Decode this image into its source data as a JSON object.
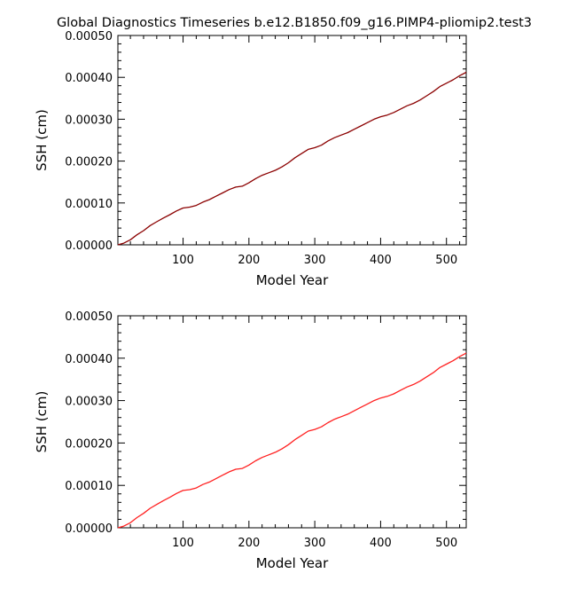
{
  "figure": {
    "title": "Global Diagnostics Timeseries b.e12.B1850.f09_g16.PIMP4-pliomip2.test3"
  },
  "chart_data": [
    {
      "type": "line",
      "title": "",
      "xlabel": "Model Year",
      "ylabel": "SSH (cm)",
      "xlim": [
        1,
        530
      ],
      "ylim": [
        0,
        0.0005
      ],
      "x_ticks": [
        100,
        200,
        300,
        400,
        500
      ],
      "x_tick_labels": [
        "100",
        "200",
        "300",
        "400",
        "500"
      ],
      "y_ticks": [
        0,
        0.0001,
        0.0002,
        0.0003,
        0.0004,
        0.0005
      ],
      "y_tick_labels": [
        "0.00000",
        "0.00010",
        "0.00020",
        "0.00030",
        "0.00040",
        "0.00050"
      ],
      "grid": false,
      "series": [
        {
          "color": "#8b0000",
          "x": [
            1,
            10,
            20,
            30,
            40,
            50,
            60,
            70,
            80,
            90,
            100,
            110,
            120,
            130,
            140,
            150,
            160,
            170,
            180,
            190,
            200,
            210,
            220,
            230,
            240,
            250,
            260,
            270,
            280,
            290,
            300,
            310,
            320,
            330,
            340,
            350,
            360,
            370,
            380,
            390,
            400,
            410,
            420,
            430,
            440,
            450,
            460,
            470,
            480,
            490,
            500,
            510,
            520,
            530
          ],
          "y": [
            0.0,
            4e-06,
            1.2e-05,
            2.4e-05,
            3.4e-05,
            4.6e-05,
            5.5e-05,
            6.4e-05,
            7.2e-05,
            8.1e-05,
            8.8e-05,
            9e-05,
            9.4e-05,
            0.000102,
            0.000108,
            0.000116,
            0.000124,
            0.000132,
            0.000138,
            0.00014,
            0.000148,
            0.000158,
            0.000166,
            0.000172,
            0.000178,
            0.000186,
            0.000196,
            0.000208,
            0.000218,
            0.000228,
            0.000232,
            0.000238,
            0.000248,
            0.000256,
            0.000262,
            0.000268,
            0.000276,
            0.000284,
            0.000292,
            0.0003,
            0.000306,
            0.00031,
            0.000316,
            0.000324,
            0.000332,
            0.000338,
            0.000346,
            0.000356,
            0.000366,
            0.000378,
            0.000386,
            0.000394,
            0.000404,
            0.000412
          ]
        }
      ]
    },
    {
      "type": "line",
      "title": "",
      "xlabel": "Model Year",
      "ylabel": "SSH (cm)",
      "xlim": [
        1,
        530
      ],
      "ylim": [
        0,
        0.0005
      ],
      "x_ticks": [
        100,
        200,
        300,
        400,
        500
      ],
      "x_tick_labels": [
        "100",
        "200",
        "300",
        "400",
        "500"
      ],
      "y_ticks": [
        0,
        0.0001,
        0.0002,
        0.0003,
        0.0004,
        0.0005
      ],
      "y_tick_labels": [
        "0.00000",
        "0.00010",
        "0.00020",
        "0.00030",
        "0.00040",
        "0.00050"
      ],
      "grid": false,
      "series": [
        {
          "color": "#ff2020",
          "x": [
            1,
            10,
            20,
            30,
            40,
            50,
            60,
            70,
            80,
            90,
            100,
            110,
            120,
            130,
            140,
            150,
            160,
            170,
            180,
            190,
            200,
            210,
            220,
            230,
            240,
            250,
            260,
            270,
            280,
            290,
            300,
            310,
            320,
            330,
            340,
            350,
            360,
            370,
            380,
            390,
            400,
            410,
            420,
            430,
            440,
            450,
            460,
            470,
            480,
            490,
            500,
            510,
            520,
            530
          ],
          "y": [
            0.0,
            4e-06,
            1.2e-05,
            2.4e-05,
            3.4e-05,
            4.6e-05,
            5.5e-05,
            6.4e-05,
            7.2e-05,
            8.1e-05,
            8.8e-05,
            9e-05,
            9.4e-05,
            0.000102,
            0.000108,
            0.000116,
            0.000124,
            0.000132,
            0.000138,
            0.00014,
            0.000148,
            0.000158,
            0.000166,
            0.000172,
            0.000178,
            0.000186,
            0.000196,
            0.000208,
            0.000218,
            0.000228,
            0.000232,
            0.000238,
            0.000248,
            0.000256,
            0.000262,
            0.000268,
            0.000276,
            0.000284,
            0.000292,
            0.0003,
            0.000306,
            0.00031,
            0.000316,
            0.000324,
            0.000332,
            0.000338,
            0.000346,
            0.000356,
            0.000366,
            0.000378,
            0.000386,
            0.000394,
            0.000404,
            0.000412
          ]
        }
      ]
    }
  ]
}
